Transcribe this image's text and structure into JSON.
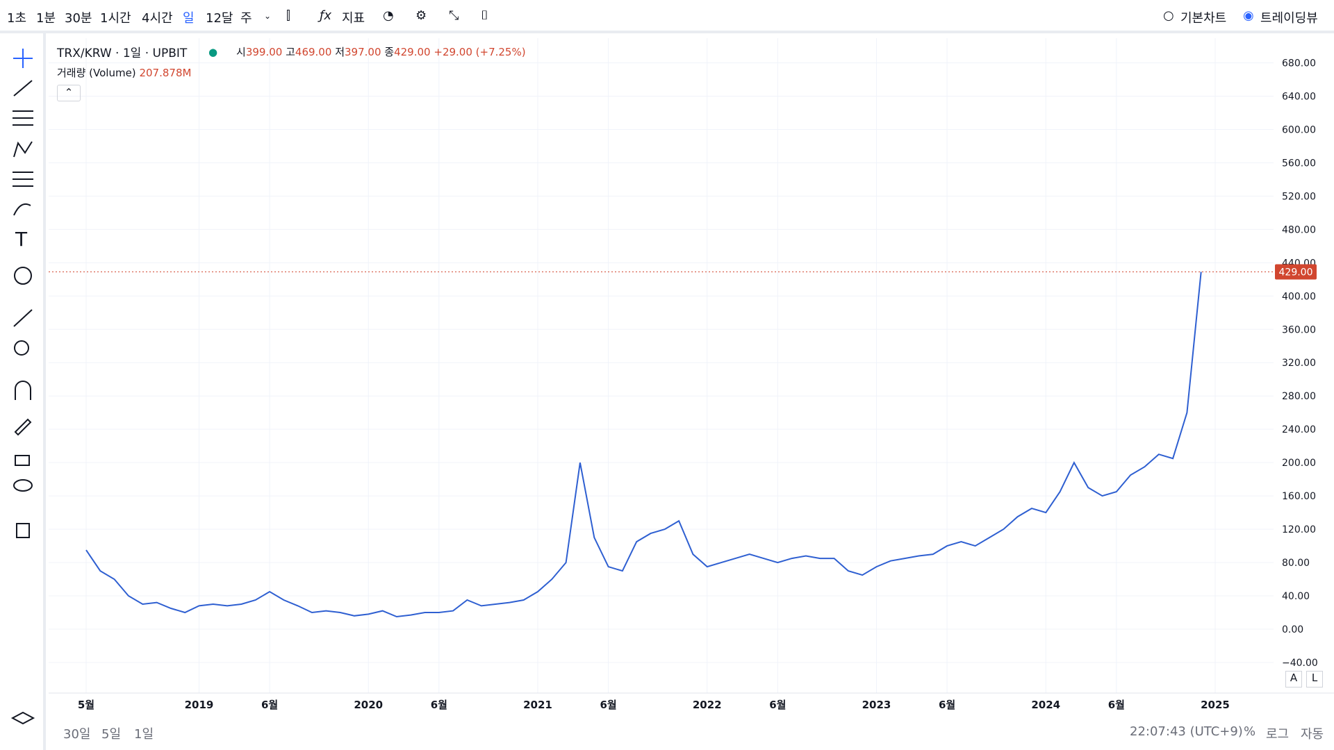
{
  "toolbar": {
    "intervals": [
      "1초",
      "1분",
      "30분",
      "1시간",
      "4시간",
      "일",
      "12달",
      "주"
    ],
    "indicators": "지표",
    "modes": [
      "기본차트",
      "트레이딩뷰"
    ]
  },
  "legend": {
    "symbol": "TRX/KRW · 1일 · UPBIT",
    "open_label": "시",
    "open": "399.00",
    "high_label": "고",
    "high": "469.00",
    "low_label": "저",
    "low": "397.00",
    "close_label": "종",
    "close": "429.00",
    "change": "+29.00 (+7.25%)",
    "volume_label": "거래량 (Volume)",
    "volume": "207.878M"
  },
  "bottom": {
    "ranges": [
      "30일",
      "5일",
      "1일"
    ],
    "clock": "22:07:43 (UTC+9)",
    "percent": "%",
    "log": "로그",
    "auto": "자동"
  },
  "scale_buttons": [
    "A",
    "L"
  ],
  "chart_data": {
    "type": "line",
    "categories": [
      "5월",
      null,
      null,
      null,
      null,
      null,
      null,
      null,
      "2019",
      null,
      null,
      null,
      null,
      "6월",
      null,
      null,
      null,
      null,
      null,
      null,
      "2020",
      null,
      null,
      null,
      null,
      "6월",
      null,
      null,
      null,
      null,
      null,
      null,
      "2021",
      null,
      null,
      null,
      null,
      "6월",
      null,
      null,
      null,
      null,
      null,
      null,
      "2022",
      null,
      null,
      null,
      null,
      "6월",
      null,
      null,
      null,
      null,
      null,
      null,
      "2023",
      null,
      null,
      null,
      null,
      "6월",
      null,
      null,
      null,
      null,
      null,
      null,
      "2024",
      null,
      null,
      null,
      null,
      "6월",
      null,
      null,
      null,
      null,
      null,
      null,
      "2025"
    ],
    "series": [
      {
        "name": "TRX/KRW",
        "color": "#2e5fd1",
        "values": [
          95,
          70,
          60,
          40,
          30,
          32,
          25,
          20,
          28,
          30,
          28,
          30,
          35,
          45,
          35,
          28,
          20,
          22,
          20,
          16,
          18,
          22,
          15,
          17,
          20,
          20,
          22,
          35,
          28,
          30,
          32,
          35,
          45,
          60,
          80,
          200,
          110,
          75,
          70,
          105,
          115,
          120,
          130,
          90,
          75,
          80,
          85,
          90,
          85,
          80,
          85,
          88,
          85,
          85,
          70,
          65,
          75,
          82,
          85,
          88,
          90,
          100,
          105,
          100,
          110,
          120,
          135,
          145,
          140,
          165,
          200,
          170,
          160,
          165,
          185,
          195,
          210,
          205,
          260,
          429,
          null
        ]
      }
    ],
    "ylim": [
      -76.7,
      709.6
    ],
    "yticks": [
      {
        "value": -40,
        "label": "−40.00"
      },
      {
        "value": 0,
        "label": "0.00"
      },
      {
        "value": 40,
        "label": "40.00"
      },
      {
        "value": 80,
        "label": "80.00"
      },
      {
        "value": 120,
        "label": "120.00"
      },
      {
        "value": 160,
        "label": "160.00"
      },
      {
        "value": 200,
        "label": "200.00"
      },
      {
        "value": 240,
        "label": "240.00"
      },
      {
        "value": 280,
        "label": "280.00"
      },
      {
        "value": 320,
        "label": "320.00"
      },
      {
        "value": 360,
        "label": "360.00"
      },
      {
        "value": 400,
        "label": "400.00"
      },
      {
        "value": 440,
        "label": "440.00"
      },
      {
        "value": 480,
        "label": "480.00"
      },
      {
        "value": 520,
        "label": "520.00"
      },
      {
        "value": 560,
        "label": "560.00"
      },
      {
        "value": 600,
        "label": "600.00"
      },
      {
        "value": 640,
        "label": "640.00"
      },
      {
        "value": 680,
        "label": "680.00"
      }
    ],
    "last_price": {
      "value": 429,
      "label": "429.00",
      "color": "#d1462f"
    },
    "grid": true
  }
}
